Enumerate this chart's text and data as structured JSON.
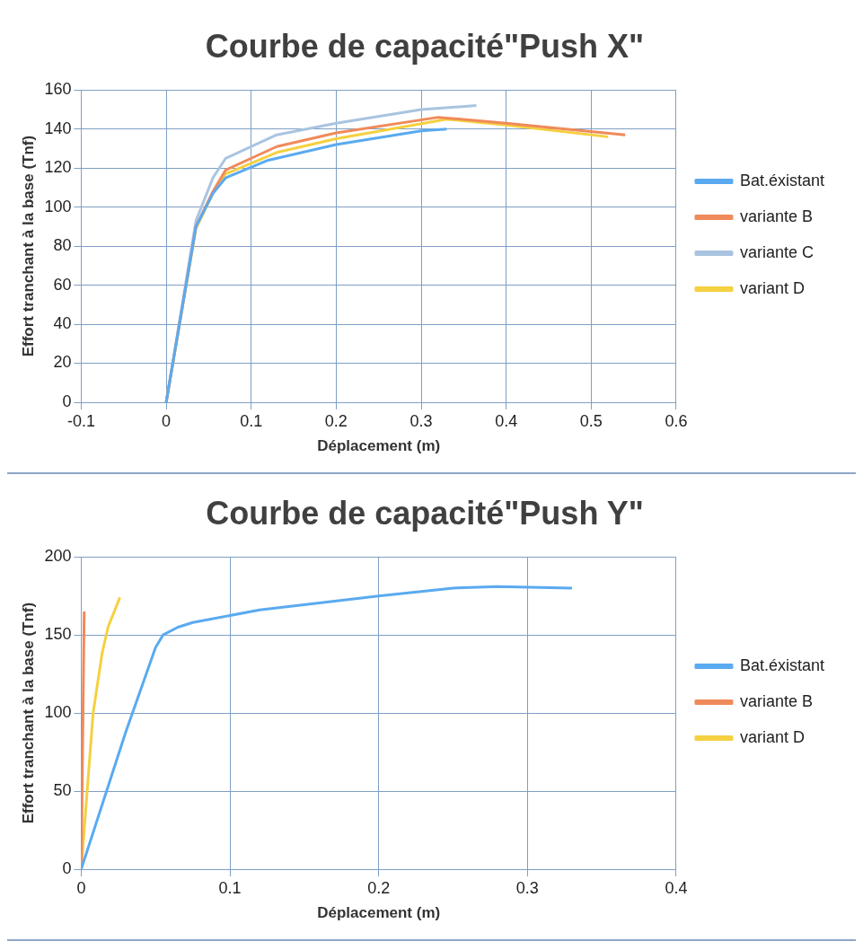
{
  "chart_data": [
    {
      "type": "line",
      "title": "Courbe de capacité\"Push X\"",
      "xlabel": "Déplacement (m)",
      "ylabel": "Effort tranchant à la base (Tnf)",
      "xlim": [
        -0.1,
        0.6
      ],
      "xticks": [
        -0.1,
        0,
        0.1,
        0.2,
        0.3,
        0.4,
        0.5,
        0.6
      ],
      "ylim": [
        0,
        160
      ],
      "yticks": [
        0,
        20,
        40,
        60,
        80,
        100,
        120,
        140,
        160
      ],
      "grid": true,
      "legend": "right",
      "series": [
        {
          "name": "Bat.éxistant",
          "color": "#5aaaf0",
          "x": [
            0,
            0.035,
            0.055,
            0.07,
            0.12,
            0.2,
            0.3,
            0.33
          ],
          "values": [
            0,
            90,
            107,
            115,
            124,
            132,
            139,
            140
          ]
        },
        {
          "name": "variante B",
          "color": "#f08a5a",
          "x": [
            0,
            0.035,
            0.055,
            0.07,
            0.13,
            0.2,
            0.32,
            0.4,
            0.54
          ],
          "values": [
            0,
            90,
            108,
            119,
            131,
            138,
            146,
            143,
            137
          ]
        },
        {
          "name": "variante C",
          "color": "#a9c4e0",
          "x": [
            0,
            0.035,
            0.055,
            0.07,
            0.13,
            0.2,
            0.3,
            0.365
          ],
          "values": [
            0,
            93,
            115,
            125,
            137,
            143,
            150,
            152
          ]
        },
        {
          "name": "variant D",
          "color": "#f5d040",
          "x": [
            0,
            0.035,
            0.055,
            0.07,
            0.13,
            0.2,
            0.33,
            0.4,
            0.52
          ],
          "values": [
            0,
            89,
            107,
            117,
            128,
            135,
            145,
            142,
            136
          ]
        }
      ]
    },
    {
      "type": "line",
      "title": "Courbe de capacité\"Push Y\"",
      "xlabel": "Déplacement (m)",
      "ylabel": "Effort tranchant à la base (Tnf)",
      "xlim": [
        0,
        0.4
      ],
      "xticks": [
        0,
        0.1,
        0.2,
        0.3,
        0.4
      ],
      "ylim": [
        0,
        200
      ],
      "yticks": [
        0,
        50,
        100,
        150,
        200
      ],
      "grid": true,
      "legend": "right",
      "series": [
        {
          "name": "Bat.éxistant",
          "color": "#5aaaf0",
          "x": [
            0,
            0.03,
            0.05,
            0.055,
            0.065,
            0.075,
            0.12,
            0.2,
            0.25,
            0.28,
            0.33
          ],
          "values": [
            0,
            88,
            142,
            150,
            155,
            158,
            166,
            175,
            180,
            181,
            180
          ]
        },
        {
          "name": "variante B",
          "color": "#f08a5a",
          "x": [
            0,
            0.002
          ],
          "values": [
            0,
            165
          ]
        },
        {
          "name": "variant D",
          "color": "#f5d040",
          "x": [
            0,
            0.008,
            0.014,
            0.018,
            0.026
          ],
          "values": [
            0,
            100,
            138,
            155,
            174
          ]
        }
      ]
    }
  ]
}
